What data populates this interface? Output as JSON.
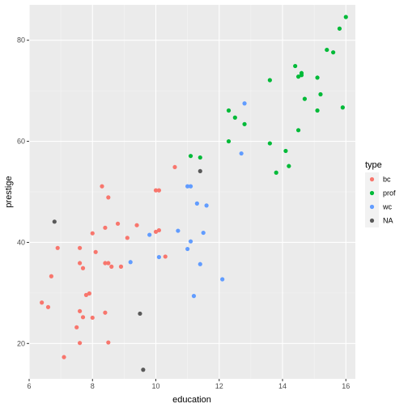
{
  "chart_data": {
    "type": "scatter",
    "xlabel": "education",
    "ylabel": "prestige",
    "xlim": [
      6.0,
      16.3
    ],
    "ylim": [
      13.0,
      87.0
    ],
    "x_ticks": [
      6,
      8,
      10,
      12,
      14,
      16
    ],
    "y_ticks": [
      20,
      40,
      60,
      80
    ],
    "grid": true,
    "legend": {
      "title": "type",
      "position": "right",
      "entries": [
        {
          "name": "bc",
          "color": "#F8766D"
        },
        {
          "name": "prof",
          "color": "#00BA38"
        },
        {
          "name": "wc",
          "color": "#619CFF"
        },
        {
          "name": "NA",
          "color": "#595959"
        }
      ]
    },
    "series": [
      {
        "name": "bc",
        "color": "#F8766D",
        "points": [
          [
            6.4,
            28.1
          ],
          [
            6.6,
            27.2
          ],
          [
            6.7,
            33.3
          ],
          [
            6.9,
            38.9
          ],
          [
            7.1,
            17.3
          ],
          [
            7.5,
            23.2
          ],
          [
            7.6,
            26.4
          ],
          [
            7.6,
            38.9
          ],
          [
            7.6,
            20.1
          ],
          [
            7.6,
            35.9
          ],
          [
            7.7,
            34.9
          ],
          [
            7.7,
            25.2
          ],
          [
            7.8,
            29.6
          ],
          [
            7.9,
            29.9
          ],
          [
            8.0,
            41.8
          ],
          [
            8.0,
            25.1
          ],
          [
            8.1,
            38.1
          ],
          [
            8.3,
            51.1
          ],
          [
            8.4,
            42.9
          ],
          [
            8.4,
            26.1
          ],
          [
            8.4,
            35.9
          ],
          [
            8.5,
            35.9
          ],
          [
            8.5,
            48.9
          ],
          [
            8.5,
            20.2
          ],
          [
            8.6,
            35.2
          ],
          [
            8.8,
            43.7
          ],
          [
            8.9,
            35.2
          ],
          [
            9.1,
            40.9
          ],
          [
            9.4,
            43.4
          ],
          [
            10.0,
            50.3
          ],
          [
            10.0,
            42.1
          ],
          [
            10.1,
            42.4
          ],
          [
            10.1,
            50.3
          ],
          [
            10.3,
            37.2
          ],
          [
            10.6,
            54.9
          ]
        ]
      },
      {
        "name": "prof",
        "color": "#00BA38",
        "points": [
          [
            11.1,
            57.1
          ],
          [
            11.4,
            56.8
          ],
          [
            12.3,
            66.1
          ],
          [
            12.3,
            60.0
          ],
          [
            12.5,
            64.7
          ],
          [
            12.8,
            63.4
          ],
          [
            13.6,
            72.1
          ],
          [
            13.6,
            59.6
          ],
          [
            13.8,
            53.8
          ],
          [
            14.1,
            58.1
          ],
          [
            14.2,
            55.1
          ],
          [
            14.4,
            74.9
          ],
          [
            14.5,
            62.2
          ],
          [
            14.5,
            72.8
          ],
          [
            14.6,
            73.5
          ],
          [
            14.7,
            68.4
          ],
          [
            15.1,
            72.6
          ],
          [
            15.1,
            66.1
          ],
          [
            15.2,
            69.3
          ],
          [
            15.4,
            78.1
          ],
          [
            15.6,
            77.6
          ],
          [
            15.8,
            82.3
          ],
          [
            15.9,
            66.7
          ],
          [
            16.0,
            84.6
          ],
          [
            14.6,
            73.1
          ]
        ]
      },
      {
        "name": "wc",
        "color": "#619CFF",
        "points": [
          [
            9.2,
            36.1
          ],
          [
            9.8,
            41.5
          ],
          [
            10.1,
            37.1
          ],
          [
            10.7,
            42.3
          ],
          [
            11.0,
            38.7
          ],
          [
            11.0,
            51.1
          ],
          [
            11.1,
            51.1
          ],
          [
            11.1,
            40.2
          ],
          [
            11.2,
            29.4
          ],
          [
            11.3,
            47.7
          ],
          [
            11.4,
            35.7
          ],
          [
            11.5,
            41.9
          ],
          [
            11.6,
            47.3
          ],
          [
            12.1,
            32.7
          ],
          [
            12.7,
            57.6
          ],
          [
            12.8,
            67.5
          ]
        ]
      },
      {
        "name": "NA",
        "color": "#595959",
        "points": [
          [
            6.8,
            44.1
          ],
          [
            9.5,
            25.9
          ],
          [
            9.6,
            14.8
          ],
          [
            11.4,
            54.1
          ]
        ]
      }
    ]
  }
}
